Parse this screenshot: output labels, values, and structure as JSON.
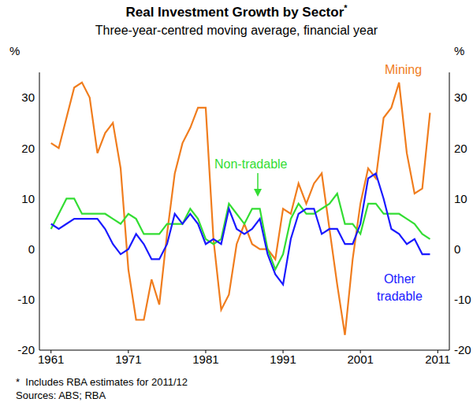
{
  "chart_data": {
    "type": "line",
    "title": "Real Investment Growth by Sector*",
    "subtitle": "Three-year-centred moving average, financial year",
    "y_label": "%",
    "x": [
      1961,
      1962,
      1963,
      1964,
      1965,
      1966,
      1967,
      1968,
      1969,
      1970,
      1971,
      1972,
      1973,
      1974,
      1975,
      1976,
      1977,
      1978,
      1979,
      1980,
      1981,
      1982,
      1983,
      1984,
      1985,
      1986,
      1987,
      1988,
      1989,
      1990,
      1991,
      1992,
      1993,
      1994,
      1995,
      1996,
      1997,
      1998,
      1999,
      2000,
      2001,
      2002,
      2003,
      2004,
      2005,
      2006,
      2007,
      2008,
      2009,
      2010
    ],
    "xlim": [
      1959.5,
      2012.5
    ],
    "xticks": [
      1961,
      1971,
      1981,
      1991,
      2001,
      2011
    ],
    "ylim": [
      -20,
      35
    ],
    "yticks": [
      -20,
      -10,
      0,
      10,
      20,
      30
    ],
    "y2lim": [
      -20,
      35
    ],
    "y2ticks": [
      -20,
      -10,
      0,
      10,
      20,
      30
    ],
    "grid": false,
    "series": [
      {
        "name": "Mining",
        "color": "#f07d1e",
        "values": [
          21,
          20,
          26,
          32,
          33,
          30,
          19,
          23,
          25,
          16,
          -4,
          -14,
          -14,
          -6,
          -11,
          3,
          15,
          21,
          24,
          28,
          28,
          2,
          -12,
          -9,
          1,
          5,
          1,
          0,
          0,
          -2,
          8,
          7,
          13,
          9,
          13,
          15,
          4,
          -7,
          -17,
          -2,
          9,
          16,
          14,
          26,
          28,
          33,
          19,
          11,
          12,
          27
        ]
      },
      {
        "name": "Non-tradable",
        "color": "#33dd33",
        "values": [
          4,
          7,
          10,
          10,
          7,
          7,
          7,
          7,
          6,
          5,
          7,
          6,
          3,
          3,
          3,
          5,
          5,
          5,
          8,
          6,
          2,
          1,
          2,
          9,
          7,
          5,
          8,
          8,
          0,
          -4,
          -1,
          6,
          9,
          7,
          7,
          8,
          9,
          11,
          5,
          5,
          3,
          9,
          9,
          7,
          7,
          7,
          6,
          5,
          3,
          2
        ]
      },
      {
        "name": "Other tradable",
        "color": "#1a1aff",
        "values": [
          5,
          4,
          5,
          6,
          6,
          6,
          6,
          4,
          1,
          -1,
          0,
          3,
          1,
          -2,
          -2,
          1,
          7,
          5,
          7,
          5,
          1,
          2,
          1,
          8,
          4,
          3,
          4,
          6,
          -1,
          -5,
          -7,
          2,
          7,
          8,
          8,
          3,
          4,
          4,
          1,
          1,
          5,
          14,
          15,
          10,
          4,
          3,
          1,
          2,
          -1,
          -1
        ]
      }
    ],
    "notes": [
      "*  Includes RBA estimates for 2011/12",
      "Sources: ABS; RBA"
    ]
  }
}
